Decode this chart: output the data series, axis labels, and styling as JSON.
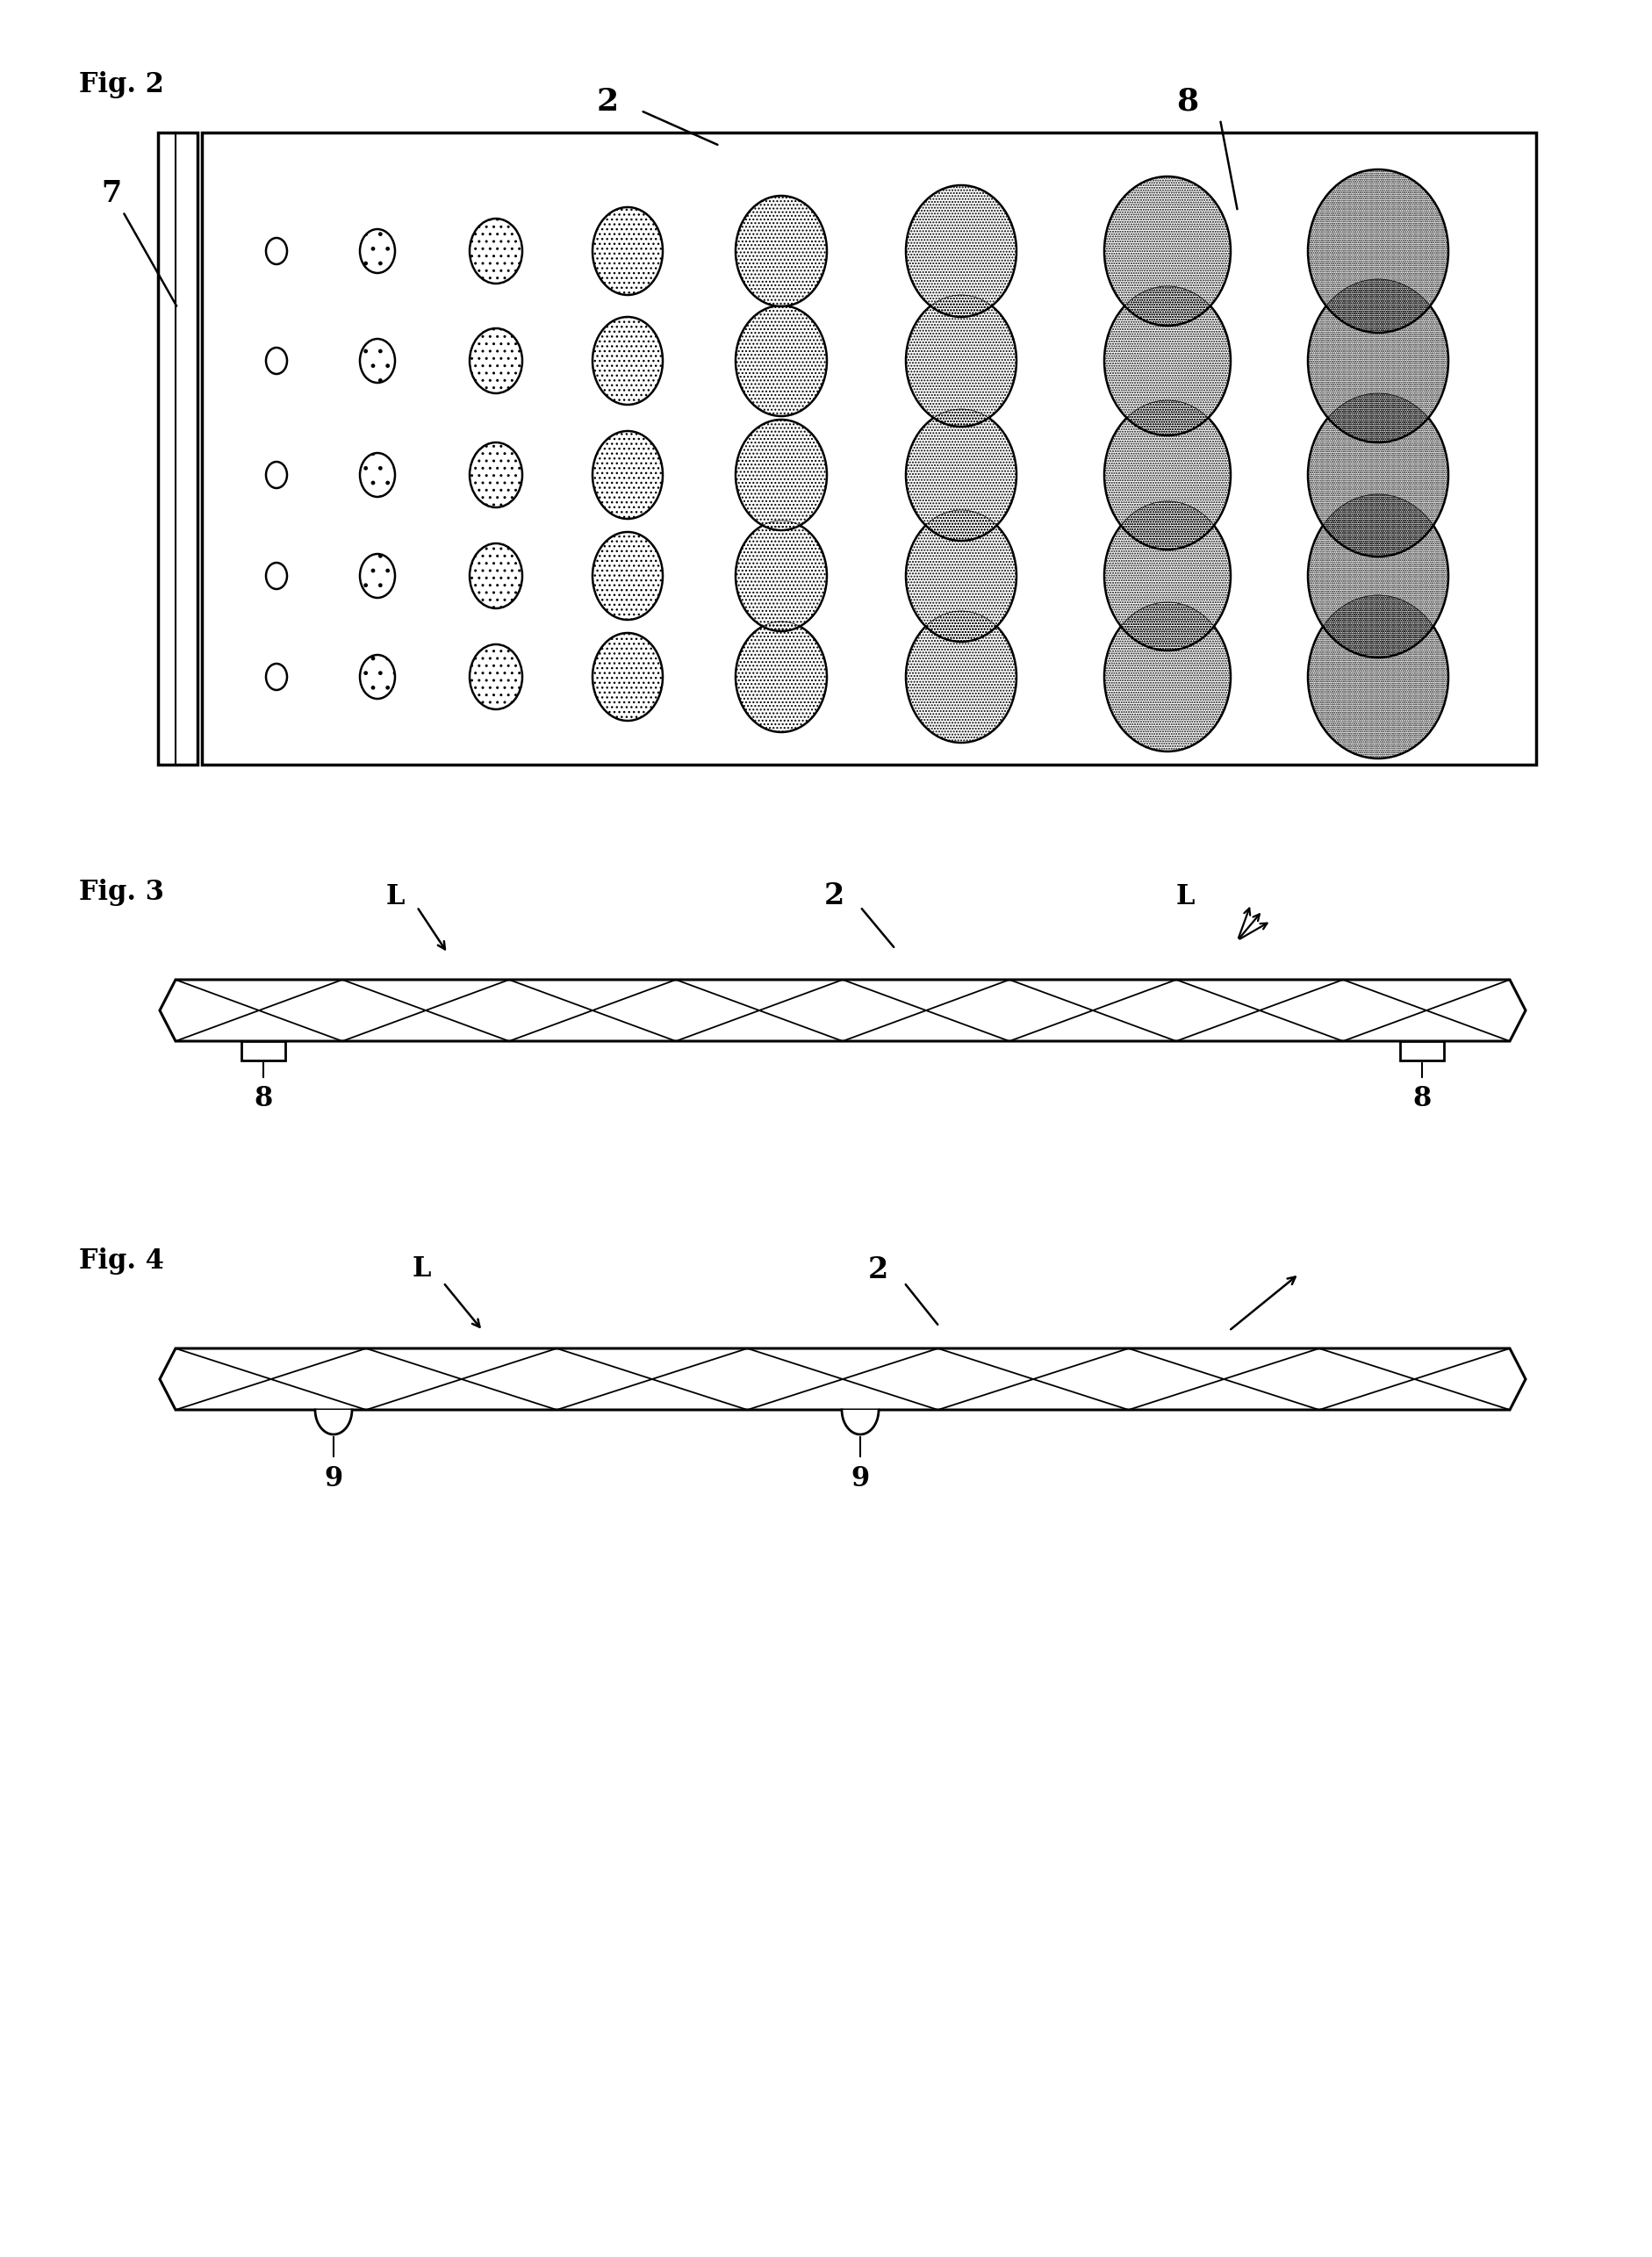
{
  "fig2_label": "Fig. 2",
  "fig3_label": "Fig. 3",
  "fig4_label": "Fig. 4",
  "background_color": "#ffffff",
  "line_color": "#000000",
  "label_7": "7",
  "label_2a": "2",
  "label_2b": "2",
  "label_2c": "2",
  "label_8a": "8",
  "label_8b": "8",
  "label_8c": "8",
  "label_L": "L",
  "label_9a": "9",
  "label_9b": "9",
  "font_size_fig": 22,
  "font_size_label": 22
}
